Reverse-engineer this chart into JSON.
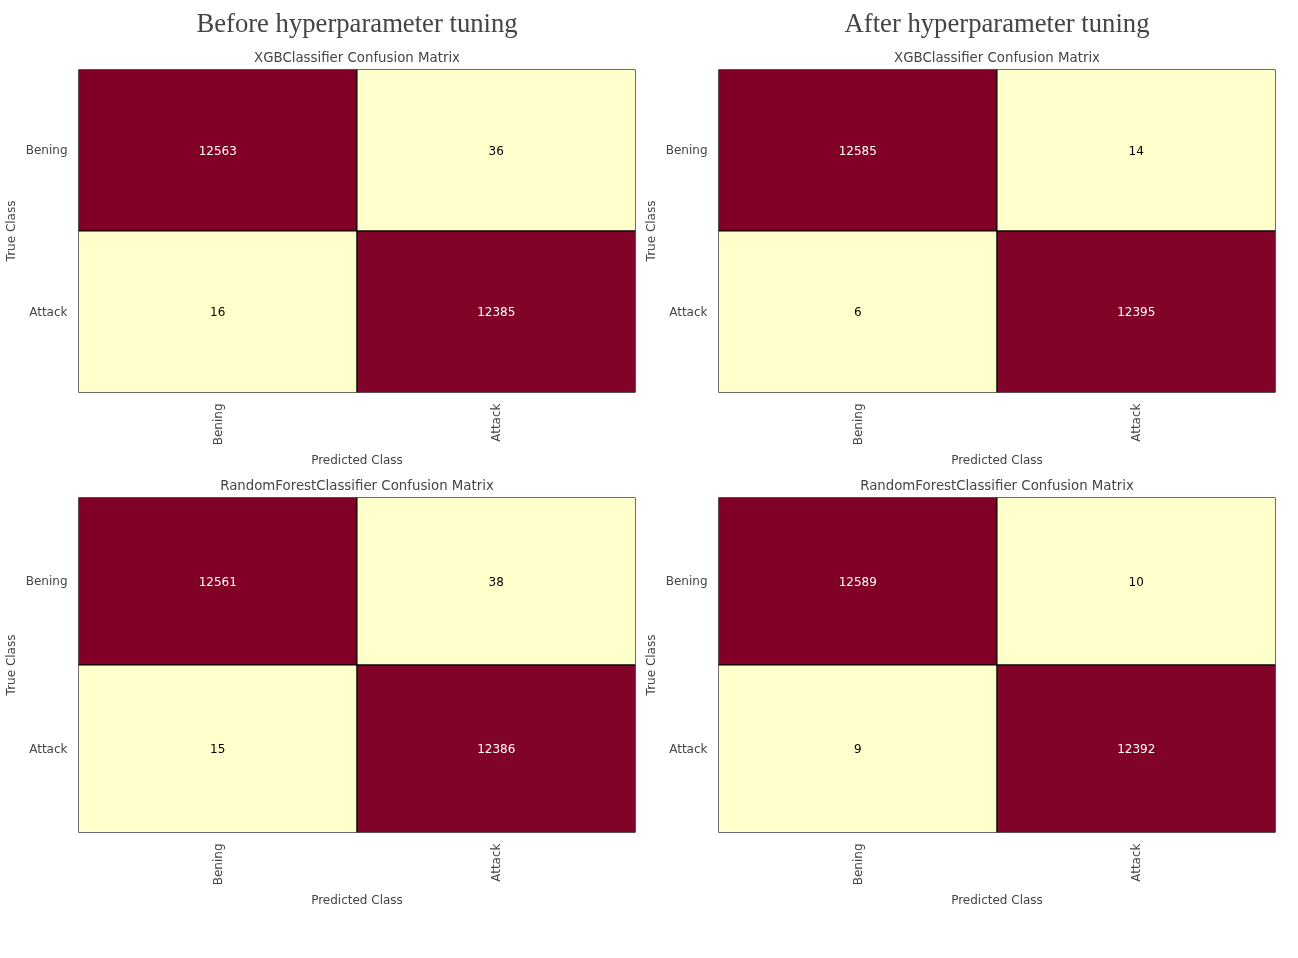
{
  "chart_data": [
    {
      "type": "heatmap",
      "subtitle": "Before hyperparameter tuning",
      "title": "XGBClassifier Confusion Matrix",
      "xlabel": "Predicted Class",
      "ylabel": "True Class",
      "categories": [
        "Bening",
        "Attack"
      ],
      "y_categories": [
        "Bening",
        "Attack"
      ],
      "cells": [
        [
          12563,
          36
        ],
        [
          16,
          12385
        ]
      ],
      "data_labels": true,
      "colors": [
        "#ffffcc",
        "#800026"
      ]
    },
    {
      "type": "heatmap",
      "subtitle": "After hyperparameter tuning",
      "title": "XGBClassifier Confusion Matrix",
      "xlabel": "Predicted Class",
      "ylabel": "True Class",
      "categories": [
        "Bening",
        "Attack"
      ],
      "y_categories": [
        "Bening",
        "Attack"
      ],
      "cells": [
        [
          12585,
          14
        ],
        [
          6,
          12395
        ]
      ],
      "data_labels": true,
      "colors": [
        "#ffffcc",
        "#800026"
      ]
    },
    {
      "type": "heatmap",
      "title": "RandomForestClassifier Confusion Matrix",
      "xlabel": "Predicted Class",
      "ylabel": "True Class",
      "categories": [
        "Bening",
        "Attack"
      ],
      "y_categories": [
        "Bening",
        "Attack"
      ],
      "cells": [
        [
          12561,
          38
        ],
        [
          15,
          12386
        ]
      ],
      "data_labels": true,
      "colors": [
        "#ffffcc",
        "#800026"
      ]
    },
    {
      "type": "heatmap",
      "title": "RandomForestClassifier Confusion Matrix",
      "xlabel": "Predicted Class",
      "ylabel": "True Class",
      "categories": [
        "Bening",
        "Attack"
      ],
      "y_categories": [
        "Bening",
        "Attack"
      ],
      "cells": [
        [
          12589,
          10
        ],
        [
          9,
          12392
        ]
      ],
      "data_labels": true,
      "colors": [
        "#ffffcc",
        "#800026"
      ]
    }
  ]
}
